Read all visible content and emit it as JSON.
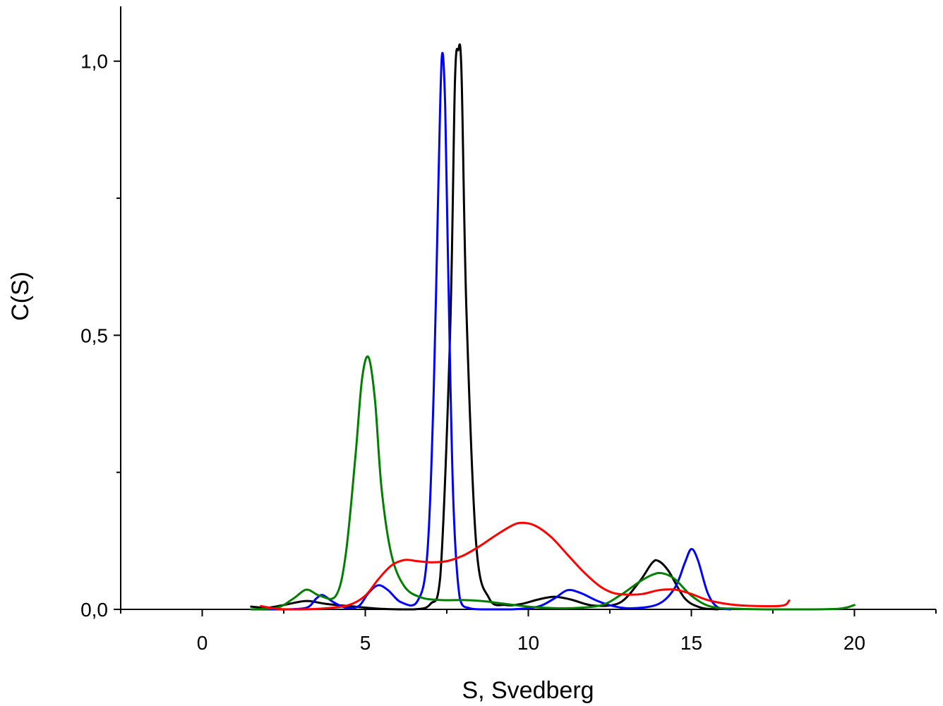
{
  "chart_data": {
    "type": "line",
    "title": "",
    "xlabel": "S, Svedberg",
    "ylabel": "C(S)",
    "xlim": [
      -2.5,
      22.5
    ],
    "ylim": [
      0,
      1.1
    ],
    "x_ticks": [
      0,
      5,
      10,
      15,
      20
    ],
    "x_tick_labels": [
      "0",
      "5",
      "10",
      "15",
      "20"
    ],
    "y_ticks": [
      0,
      0.5,
      1.0
    ],
    "y_tick_labels": [
      "0,0",
      "0,5",
      "1,0"
    ],
    "y_minor_ticks": [
      0.25,
      0.75
    ],
    "grid": false,
    "legend": "none",
    "series": [
      {
        "color": "#000000",
        "x": [
          1.5,
          2.0,
          2.5,
          3.0,
          3.3,
          3.8,
          4.5,
          5.5,
          6.5,
          7.0,
          7.3,
          7.6,
          7.75,
          7.85,
          7.95,
          8.1,
          8.4,
          8.8,
          9.3,
          9.8,
          10.3,
          10.8,
          11.3,
          12.0,
          12.8,
          13.4,
          13.8,
          14.0,
          14.3,
          14.8,
          15.3,
          15.8
        ],
        "y": [
          0.005,
          0.003,
          0.008,
          0.014,
          0.015,
          0.01,
          0.006,
          0.001,
          0.0,
          0.01,
          0.06,
          0.5,
          0.96,
          1.02,
          0.98,
          0.55,
          0.12,
          0.02,
          0.008,
          0.01,
          0.018,
          0.023,
          0.018,
          0.007,
          0.012,
          0.05,
          0.085,
          0.088,
          0.07,
          0.02,
          0.003,
          0.0
        ]
      },
      {
        "color": "#0000ff",
        "x": [
          1.5,
          2.5,
          3.2,
          3.5,
          3.7,
          4.0,
          4.4,
          4.8,
          5.1,
          5.4,
          5.7,
          6.1,
          6.6,
          6.9,
          7.1,
          7.25,
          7.35,
          7.45,
          7.55,
          7.7,
          7.9,
          8.2,
          8.6,
          9.5,
          10.3,
          10.8,
          11.2,
          11.6,
          12.1,
          12.6,
          13.2,
          14.0,
          14.5,
          14.8,
          15.0,
          15.2,
          15.5,
          15.8,
          16.2
        ],
        "y": [
          0.0,
          0.0,
          0.003,
          0.02,
          0.026,
          0.014,
          0.003,
          0.006,
          0.03,
          0.044,
          0.035,
          0.013,
          0.015,
          0.1,
          0.4,
          0.8,
          1.01,
          0.92,
          0.6,
          0.2,
          0.02,
          0.002,
          0.0,
          0.0,
          0.005,
          0.02,
          0.035,
          0.03,
          0.016,
          0.006,
          0.002,
          0.01,
          0.04,
          0.085,
          0.11,
          0.09,
          0.03,
          0.004,
          0.0
        ]
      },
      {
        "color": "#007f00",
        "x": [
          1.5,
          2.3,
          2.8,
          3.2,
          3.6,
          4.1,
          4.4,
          4.7,
          4.9,
          5.1,
          5.3,
          5.5,
          5.8,
          6.2,
          6.7,
          7.3,
          8.0,
          8.6,
          9.3,
          10.2,
          11.2,
          12.2,
          12.8,
          13.4,
          13.8,
          14.1,
          14.5,
          15.0,
          15.6,
          16.5,
          18.0,
          19.5,
          20.0
        ],
        "y": [
          0.0,
          0.003,
          0.02,
          0.036,
          0.025,
          0.025,
          0.1,
          0.28,
          0.42,
          0.46,
          0.38,
          0.22,
          0.1,
          0.042,
          0.022,
          0.017,
          0.017,
          0.015,
          0.01,
          0.004,
          0.002,
          0.007,
          0.025,
          0.05,
          0.063,
          0.066,
          0.055,
          0.025,
          0.005,
          0.001,
          0.0,
          0.001,
          0.008
        ]
      },
      {
        "color": "#ff0000",
        "x": [
          1.8,
          2.3,
          3.0,
          3.8,
          4.5,
          5.0,
          5.4,
          5.8,
          6.2,
          6.6,
          7.0,
          7.5,
          8.0,
          8.5,
          9.0,
          9.5,
          9.8,
          10.2,
          10.7,
          11.2,
          11.7,
          12.2,
          12.6,
          13.0,
          13.5,
          14.0,
          14.5,
          15.0,
          15.5,
          16.2,
          17.0,
          17.8,
          18.0
        ],
        "y": [
          0.006,
          0.001,
          0.0,
          0.002,
          0.008,
          0.025,
          0.055,
          0.08,
          0.09,
          0.088,
          0.086,
          0.088,
          0.098,
          0.115,
          0.135,
          0.153,
          0.158,
          0.153,
          0.132,
          0.1,
          0.068,
          0.042,
          0.03,
          0.027,
          0.028,
          0.035,
          0.036,
          0.028,
          0.017,
          0.009,
          0.006,
          0.007,
          0.016
        ]
      }
    ]
  }
}
